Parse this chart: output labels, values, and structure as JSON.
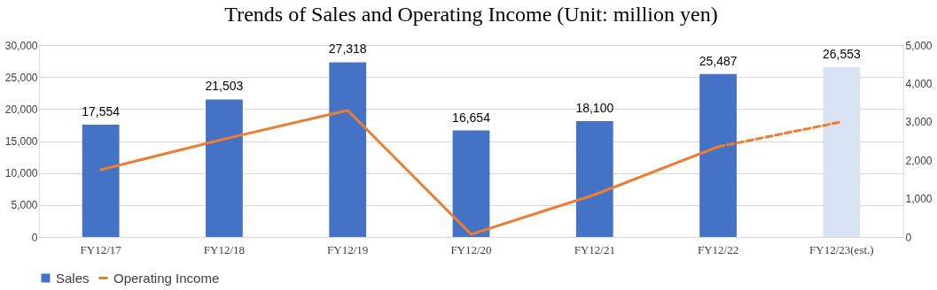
{
  "chart_data": {
    "type": "bar",
    "title": "Trends of Sales and Operating Income (Unit: million yen)",
    "categories": [
      "FY12/17",
      "FY12/18",
      "FY12/19",
      "FY12/20",
      "FY12/21",
      "FY12/22",
      "FY12/23(est.)"
    ],
    "series": [
      {
        "name": "Sales",
        "color": "#4472c4",
        "colors": [
          "#4472c4",
          "#4472c4",
          "#4472c4",
          "#4472c4",
          "#4472c4",
          "#4472c4",
          "#dae3f3"
        ],
        "values": [
          17554,
          21503,
          27318,
          16654,
          18100,
          25487,
          26553
        ],
        "value_labels": [
          "17,554",
          "21,503",
          "27,318",
          "16,654",
          "18,100",
          "25,487",
          "26,553"
        ]
      },
      {
        "name": "Operating Income",
        "type": "line",
        "axis": "y2",
        "color": "#ed7d31",
        "line_style": "solid",
        "values": [
          1750,
          2550,
          3300,
          70,
          1100,
          2350,
          null
        ]
      },
      {
        "type": "line",
        "axis": "y2",
        "color": "#ed7d31",
        "line_style": "dashed",
        "values": [
          null,
          null,
          null,
          null,
          null,
          2350,
          3000
        ]
      }
    ],
    "ylim": [
      0,
      30000
    ],
    "yticks": [
      0,
      {
        "value": 5000,
        "label": "5,000"
      },
      {
        "value": 10000,
        "label": "10,000"
      },
      {
        "value": 15000,
        "label": "15,000"
      },
      {
        "value": 20000,
        "label": "20,000"
      },
      {
        "value": 25000,
        "label": "25,000"
      },
      {
        "value": 30000,
        "label": "30,000"
      }
    ],
    "y2lim": [
      0,
      5000
    ],
    "y2ticks": [
      0,
      {
        "value": 1000,
        "label": "1,000"
      },
      {
        "value": 2000,
        "label": "2,000"
      },
      {
        "value": 3000,
        "label": "3,000"
      },
      {
        "value": 4000,
        "label": "4,000"
      },
      {
        "value": 5000,
        "label": "5,000"
      }
    ],
    "grid": "y",
    "legend": "bottom"
  }
}
